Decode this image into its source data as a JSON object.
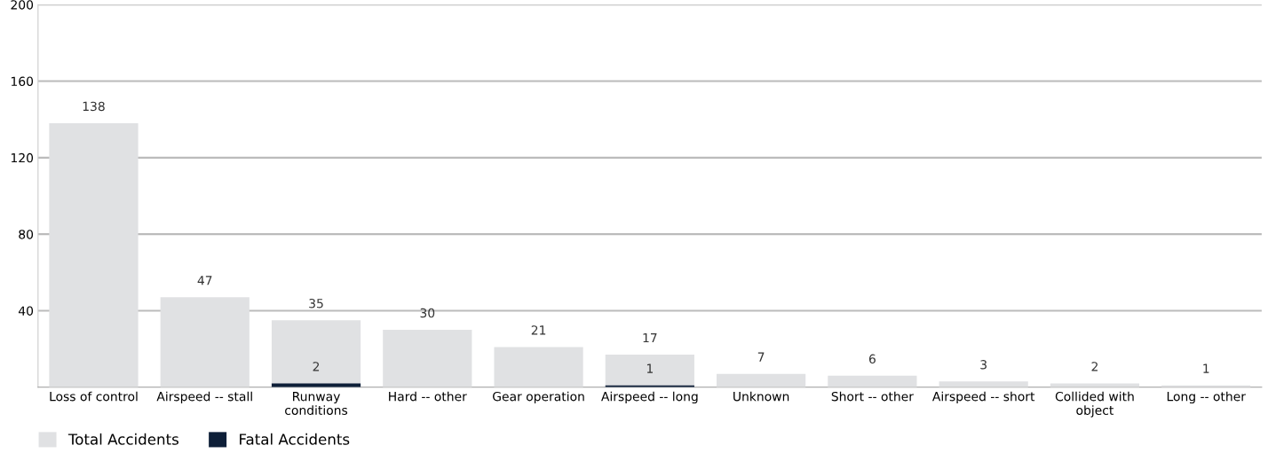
{
  "chart_data": {
    "type": "bar",
    "categories": [
      "Loss of control",
      "Airspeed -- stall",
      "Runway\nconditions",
      "Hard -- other",
      "Gear operation",
      "Airspeed -- long",
      "Unknown",
      "Short -- other",
      "Airspeed -- short",
      "Collided with\nobject",
      "Long -- other"
    ],
    "series": [
      {
        "name": "Total Accidents",
        "color": "#e0e1e3",
        "values": [
          138,
          47,
          35,
          30,
          21,
          17,
          7,
          6,
          3,
          2,
          1
        ],
        "value_labels": [
          "138",
          "47",
          "35",
          "30",
          "21",
          "17",
          "7",
          "6",
          "3",
          "2",
          "1"
        ]
      },
      {
        "name": "Fatal Accidents",
        "color": "#0e1f38",
        "values": [
          0,
          0,
          2,
          0,
          0,
          1,
          0,
          0,
          0,
          0,
          0
        ],
        "value_labels": [
          null,
          null,
          "2",
          null,
          null,
          "1",
          null,
          null,
          null,
          null,
          null
        ]
      }
    ],
    "ylim": [
      0,
      200
    ],
    "yticks": [
      40,
      80,
      120,
      160,
      200
    ],
    "grid": "y",
    "legend": "bottom left"
  }
}
